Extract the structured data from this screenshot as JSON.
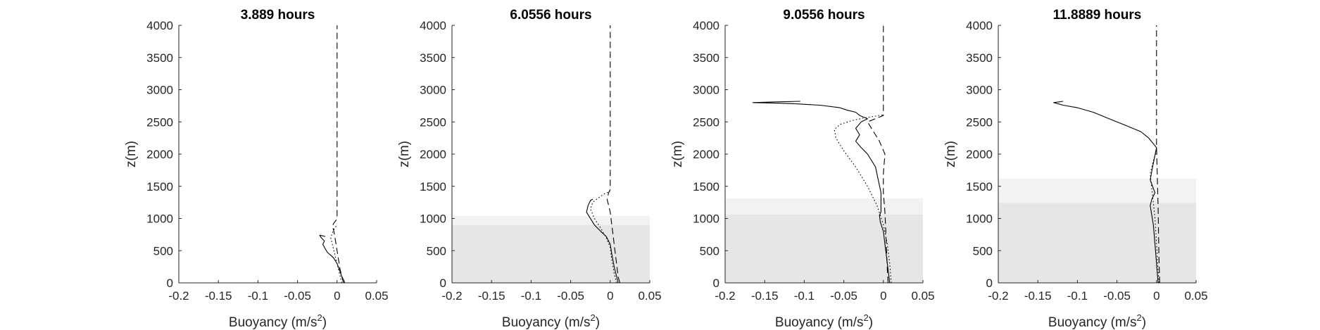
{
  "figure": {
    "background": "#ffffff"
  },
  "style": {
    "axis_color": "#262626",
    "line_color": "#000000",
    "band_dark": "#e6e6e6",
    "band_light": "#f2f2f2"
  },
  "chart_data": [
    {
      "type": "line",
      "title": "3.889 hours",
      "xlabel": "Buoyancy (m/s",
      "xlabel_sup": "2",
      "xlabel_end": ")",
      "ylabel": "z(m)",
      "xlim": [
        -0.2,
        0.05
      ],
      "ylim": [
        0,
        4000
      ],
      "xticks": [
        -0.2,
        -0.15,
        -0.1,
        -0.05,
        0,
        0.05
      ],
      "xtick_labels": [
        "-0.2",
        "-0.15",
        "-0.1",
        "-0.05",
        "0",
        "0.05"
      ],
      "yticks": [
        0,
        500,
        1000,
        1500,
        2000,
        2500,
        3000,
        3500,
        4000
      ],
      "ytick_labels": [
        "0",
        "500",
        "1000",
        "1500",
        "2000",
        "2500",
        "3000",
        "3500",
        "4000"
      ],
      "bands": [],
      "series": [
        {
          "dash": "solid",
          "x": [
            0.01,
            0.008,
            0.006,
            0.003,
            0.0,
            -0.004,
            -0.008,
            -0.012,
            -0.015,
            -0.018,
            -0.016,
            -0.02,
            -0.022,
            -0.018,
            -0.015
          ],
          "y": [
            0,
            50,
            100,
            200,
            300,
            380,
            430,
            470,
            530,
            600,
            650,
            700,
            740,
            730,
            720
          ]
        },
        {
          "dash": "dashed",
          "x": [
            0.008,
            0.006,
            0.004,
            0.002,
            0.0,
            -0.002,
            -0.004,
            -0.006,
            -0.004,
            -0.002,
            0.0,
            0.0,
            0.0,
            0.0,
            0.0
          ],
          "y": [
            0,
            100,
            200,
            350,
            500,
            650,
            800,
            880,
            930,
            960,
            1000,
            1500,
            2500,
            3500,
            4000
          ]
        },
        {
          "dash": "dotted",
          "x": [
            0.006,
            0.003,
            0.0,
            -0.003,
            -0.006,
            -0.008,
            -0.006,
            -0.003,
            0.0
          ],
          "y": [
            0,
            150,
            300,
            450,
            600,
            700,
            780,
            850,
            900
          ]
        }
      ]
    },
    {
      "type": "line",
      "title": "6.0556 hours",
      "xlabel": "Buoyancy (m/s",
      "xlabel_sup": "2",
      "xlabel_end": ")",
      "ylabel": "z(m)",
      "xlim": [
        -0.2,
        0.05
      ],
      "ylim": [
        0,
        4000
      ],
      "xticks": [
        -0.2,
        -0.15,
        -0.1,
        -0.05,
        0,
        0.05
      ],
      "xtick_labels": [
        "-0.2",
        "-0.15",
        "-0.1",
        "-0.05",
        "0",
        "0.05"
      ],
      "yticks": [
        0,
        500,
        1000,
        1500,
        2000,
        2500,
        3000,
        3500,
        4000
      ],
      "ytick_labels": [
        "0",
        "500",
        "1000",
        "1500",
        "2000",
        "2500",
        "3000",
        "3500",
        "4000"
      ],
      "bands": [
        {
          "shade": "dark",
          "from": 0,
          "to": 900
        },
        {
          "shade": "light",
          "from": 900,
          "to": 1040
        }
      ],
      "series": [
        {
          "dash": "solid",
          "x": [
            0.01,
            0.008,
            0.005,
            0.002,
            0.0,
            -0.005,
            -0.012,
            -0.02,
            -0.025,
            -0.03,
            -0.028,
            -0.025,
            -0.022
          ],
          "y": [
            0,
            100,
            250,
            450,
            600,
            720,
            800,
            900,
            1000,
            1100,
            1200,
            1280,
            1300
          ]
        },
        {
          "dash": "dashed",
          "x": [
            0.012,
            0.01,
            0.008,
            0.006,
            0.004,
            0.002,
            0.0,
            -0.002,
            -0.004,
            -0.002,
            0.0,
            0.0,
            0.0,
            0.0
          ],
          "y": [
            0,
            100,
            300,
            500,
            700,
            900,
            1100,
            1200,
            1300,
            1400,
            1450,
            2500,
            3500,
            4000
          ]
        },
        {
          "dash": "dotted",
          "x": [
            0.008,
            0.005,
            0.002,
            0.0,
            -0.005,
            -0.012,
            -0.02,
            -0.025,
            -0.022,
            -0.015,
            -0.008,
            0.0
          ],
          "y": [
            0,
            150,
            350,
            550,
            700,
            850,
            1000,
            1150,
            1250,
            1320,
            1380,
            1420
          ]
        }
      ]
    },
    {
      "type": "line",
      "title": "9.0556 hours",
      "xlabel": "Buoyancy (m/s",
      "xlabel_sup": "2",
      "xlabel_end": ")",
      "ylabel": "z(m)",
      "xlim": [
        -0.2,
        0.05
      ],
      "ylim": [
        0,
        4000
      ],
      "xticks": [
        -0.2,
        -0.15,
        -0.1,
        -0.05,
        0,
        0.05
      ],
      "xtick_labels": [
        "-0.2",
        "-0.15",
        "-0.1",
        "-0.05",
        "0",
        "0.05"
      ],
      "yticks": [
        0,
        500,
        1000,
        1500,
        2000,
        2500,
        3000,
        3500,
        4000
      ],
      "ytick_labels": [
        "0",
        "500",
        "1000",
        "1500",
        "2000",
        "2500",
        "3000",
        "3500",
        "4000"
      ],
      "bands": [
        {
          "shade": "dark",
          "from": 0,
          "to": 1060
        },
        {
          "shade": "light",
          "from": 1060,
          "to": 1310
        }
      ],
      "series": [
        {
          "dash": "solid",
          "x": [
            0.008,
            0.006,
            0.004,
            0.002,
            0.0,
            -0.004,
            -0.005,
            -0.003,
            -0.003,
            -0.01,
            -0.02,
            -0.028,
            -0.035,
            -0.03,
            -0.035,
            -0.028,
            -0.02,
            -0.03,
            -0.035,
            -0.045,
            -0.055,
            -0.08,
            -0.11,
            -0.13,
            -0.165,
            -0.14,
            -0.105
          ],
          "y": [
            0,
            200,
            400,
            600,
            800,
            950,
            1050,
            1100,
            1400,
            1800,
            2000,
            2100,
            2200,
            2300,
            2400,
            2500,
            2550,
            2600,
            2650,
            2680,
            2720,
            2760,
            2780,
            2790,
            2800,
            2810,
            2820
          ]
        },
        {
          "dash": "dashed",
          "x": [
            0.006,
            0.005,
            0.004,
            0.003,
            0.002,
            0.0,
            0.0,
            0.002,
            -0.005,
            -0.015,
            -0.02,
            -0.01,
            0.0,
            0.0,
            0.0,
            0.0
          ],
          "y": [
            0,
            200,
            500,
            800,
            1100,
            1400,
            1700,
            2000,
            2200,
            2400,
            2500,
            2550,
            2600,
            3000,
            3500,
            4000
          ]
        },
        {
          "dash": "dotted",
          "x": [
            0.01,
            0.008,
            0.005,
            0.0,
            -0.008,
            -0.02,
            -0.035,
            -0.05,
            -0.06,
            -0.062,
            -0.055,
            -0.04,
            -0.025,
            -0.01,
            0.0
          ],
          "y": [
            0,
            300,
            600,
            900,
            1200,
            1500,
            1800,
            2050,
            2250,
            2380,
            2460,
            2520,
            2560,
            2590,
            2610
          ]
        }
      ]
    },
    {
      "type": "line",
      "title": "11.8889 hours",
      "xlabel": "Buoyancy (m/s",
      "xlabel_sup": "2",
      "xlabel_end": ")",
      "ylabel": "z(m)",
      "xlim": [
        -0.2,
        0.05
      ],
      "ylim": [
        0,
        4000
      ],
      "xticks": [
        -0.2,
        -0.15,
        -0.1,
        -0.05,
        0,
        0.05
      ],
      "xtick_labels": [
        "-0.2",
        "-0.15",
        "-0.1",
        "-0.05",
        "0",
        "0.05"
      ],
      "yticks": [
        0,
        500,
        1000,
        1500,
        2000,
        2500,
        3000,
        3500,
        4000
      ],
      "ytick_labels": [
        "0",
        "500",
        "1000",
        "1500",
        "2000",
        "2500",
        "3000",
        "3500",
        "4000"
      ],
      "bands": [
        {
          "shade": "dark",
          "from": 0,
          "to": 1240
        },
        {
          "shade": "light",
          "from": 1240,
          "to": 1620
        }
      ],
      "series": [
        {
          "dash": "solid",
          "x": [
            0.002,
            0.0,
            -0.002,
            -0.004,
            -0.008,
            -0.006,
            -0.002,
            -0.005,
            -0.008,
            -0.005,
            0.0,
            -0.01,
            -0.02,
            -0.04,
            -0.06,
            -0.08,
            -0.1,
            -0.118,
            -0.13,
            -0.118
          ],
          "y": [
            0,
            300,
            600,
            900,
            1200,
            1300,
            1400,
            1500,
            1600,
            1800,
            2100,
            2250,
            2350,
            2450,
            2550,
            2650,
            2720,
            2760,
            2800,
            2820
          ]
        },
        {
          "dash": "dashed",
          "x": [
            0.004,
            0.003,
            0.002,
            0.0,
            0.0,
            0.0
          ],
          "y": [
            0,
            400,
            1200,
            2100,
            3000,
            4000
          ]
        },
        {
          "dash": "dotted",
          "x": [
            0.003,
            0.001,
            -0.002,
            -0.008,
            -0.004,
            0.0,
            0.0
          ],
          "y": [
            0,
            400,
            1000,
            1700,
            1900,
            2050,
            2100
          ]
        }
      ]
    }
  ]
}
